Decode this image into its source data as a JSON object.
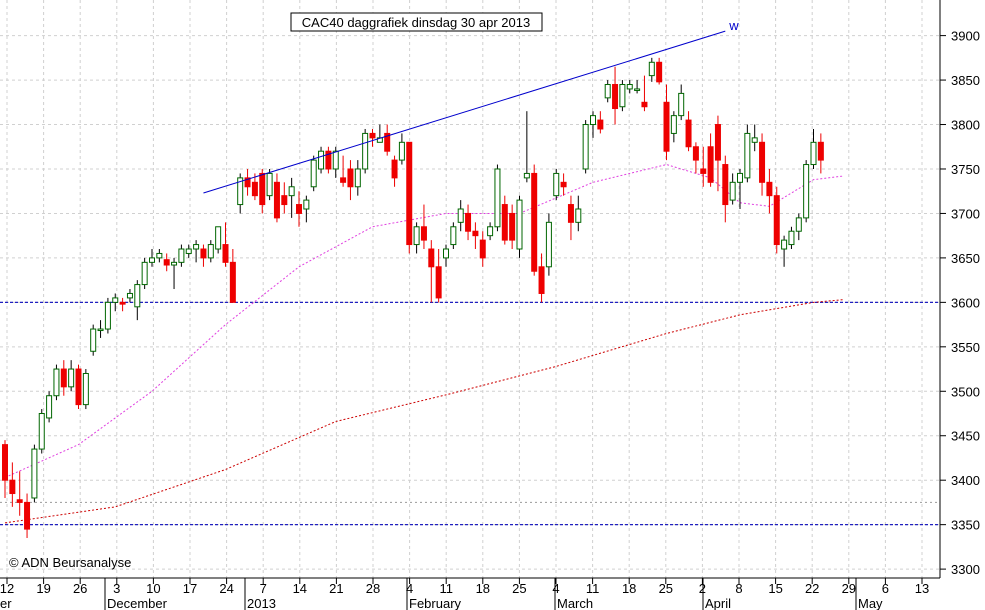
{
  "chart_data": {
    "type": "candlestick",
    "title": "CAC40 daggrafiek dinsdag 30 apr 2013",
    "copyright": "© ADN Beursanalyse",
    "trendline_label": "w",
    "ylim": [
      3290,
      3930
    ],
    "y_ticks": [
      3300,
      3350,
      3400,
      3450,
      3500,
      3550,
      3600,
      3650,
      3700,
      3750,
      3800,
      3850,
      3900
    ],
    "x_day_labels": [
      "12",
      "19",
      "26",
      "3",
      "10",
      "17",
      "24",
      "7",
      "14",
      "21",
      "28",
      "4",
      "11",
      "18",
      "25",
      "4",
      "11",
      "18",
      "25",
      "2",
      "8",
      "15",
      "22",
      "29",
      "6",
      "13"
    ],
    "x_month_labels": [
      "er",
      "December",
      "2013",
      "February",
      "March",
      "April",
      "May"
    ],
    "horizontal_levels": [
      3600,
      3350
    ],
    "dotted_level": 3375,
    "trendline": {
      "from": {
        "index": 27,
        "value": 3723
      },
      "to": {
        "index": 98,
        "value": 3905
      }
    },
    "series": [
      {
        "name": "Koers",
        "type": "candlestick",
        "candles": [
          [
            3440,
            3445,
            3380,
            3400
          ],
          [
            3400,
            3420,
            3370,
            3385
          ],
          [
            3378,
            3410,
            3360,
            3375
          ],
          [
            3375,
            3385,
            3335,
            3345
          ],
          [
            3380,
            3440,
            3375,
            3435
          ],
          [
            3435,
            3480,
            3430,
            3475
          ],
          [
            3470,
            3500,
            3465,
            3495
          ],
          [
            3495,
            3530,
            3490,
            3525
          ],
          [
            3525,
            3535,
            3495,
            3505
          ],
          [
            3505,
            3535,
            3500,
            3525
          ],
          [
            3525,
            3530,
            3480,
            3485
          ],
          [
            3485,
            3525,
            3480,
            3520
          ],
          [
            3545,
            3575,
            3540,
            3570
          ],
          [
            3570,
            3580,
            3560,
            3570
          ],
          [
            3570,
            3605,
            3565,
            3600
          ],
          [
            3600,
            3610,
            3590,
            3605
          ],
          [
            3600,
            3605,
            3590,
            3598
          ],
          [
            3605,
            3615,
            3600,
            3610
          ],
          [
            3595,
            3625,
            3580,
            3620
          ],
          [
            3620,
            3650,
            3615,
            3645
          ],
          [
            3645,
            3660,
            3640,
            3650
          ],
          [
            3650,
            3660,
            3645,
            3655
          ],
          [
            3648,
            3655,
            3635,
            3642
          ],
          [
            3642,
            3650,
            3615,
            3645
          ],
          [
            3645,
            3665,
            3640,
            3660
          ],
          [
            3655,
            3665,
            3650,
            3660
          ],
          [
            3660,
            3670,
            3645,
            3665
          ],
          [
            3660,
            3665,
            3640,
            3650
          ],
          [
            3650,
            3670,
            3645,
            3665
          ],
          [
            3660,
            3680,
            3655,
            3685
          ],
          [
            3665,
            3690,
            3640,
            3645
          ],
          [
            3645,
            3660,
            3600,
            3600
          ],
          [
            3710,
            3745,
            3700,
            3740
          ],
          [
            3740,
            3750,
            3720,
            3730
          ],
          [
            3735,
            3745,
            3715,
            3720
          ],
          [
            3745,
            3750,
            3700,
            3710
          ],
          [
            3720,
            3750,
            3715,
            3745
          ],
          [
            3735,
            3745,
            3690,
            3695
          ],
          [
            3720,
            3735,
            3700,
            3710
          ],
          [
            3720,
            3740,
            3695,
            3730
          ],
          [
            3710,
            3725,
            3685,
            3700
          ],
          [
            3705,
            3720,
            3690,
            3715
          ],
          [
            3730,
            3765,
            3725,
            3760
          ],
          [
            3750,
            3775,
            3745,
            3770
          ],
          [
            3770,
            3775,
            3745,
            3750
          ],
          [
            3750,
            3775,
            3740,
            3770
          ],
          [
            3740,
            3765,
            3730,
            3735
          ],
          [
            3750,
            3760,
            3715,
            3730
          ],
          [
            3730,
            3760,
            3720,
            3750
          ],
          [
            3750,
            3795,
            3745,
            3790
          ],
          [
            3790,
            3795,
            3775,
            3785
          ],
          [
            3780,
            3800,
            3780,
            3785
          ],
          [
            3790,
            3800,
            3765,
            3770
          ],
          [
            3760,
            3765,
            3730,
            3740
          ],
          [
            3760,
            3790,
            3755,
            3780
          ],
          [
            3780,
            3780,
            3655,
            3665
          ],
          [
            3665,
            3690,
            3655,
            3685
          ],
          [
            3685,
            3710,
            3660,
            3670
          ],
          [
            3660,
            3670,
            3600,
            3640
          ],
          [
            3640,
            3660,
            3600,
            3605
          ],
          [
            3650,
            3665,
            3640,
            3660
          ],
          [
            3665,
            3690,
            3660,
            3685
          ],
          [
            3690,
            3715,
            3680,
            3705
          ],
          [
            3700,
            3710,
            3670,
            3680
          ],
          [
            3680,
            3690,
            3660,
            3675
          ],
          [
            3670,
            3680,
            3640,
            3650
          ],
          [
            3675,
            3690,
            3670,
            3685
          ],
          [
            3685,
            3755,
            3680,
            3750
          ],
          [
            3710,
            3720,
            3665,
            3670
          ],
          [
            3700,
            3710,
            3660,
            3670
          ],
          [
            3660,
            3720,
            3650,
            3715
          ],
          [
            3740,
            3815,
            3735,
            3745
          ],
          [
            3745,
            3755,
            3630,
            3635
          ],
          [
            3640,
            3655,
            3600,
            3610
          ],
          [
            3640,
            3700,
            3630,
            3690
          ],
          [
            3720,
            3750,
            3715,
            3745
          ],
          [
            3735,
            3745,
            3720,
            3730
          ],
          [
            3710,
            3720,
            3670,
            3690
          ],
          [
            3690,
            3720,
            3680,
            3705
          ],
          [
            3750,
            3805,
            3745,
            3800
          ],
          [
            3800,
            3815,
            3785,
            3810
          ],
          [
            3805,
            3815,
            3790,
            3795
          ],
          [
            3830,
            3850,
            3825,
            3845
          ],
          [
            3845,
            3865,
            3800,
            3818
          ],
          [
            3820,
            3850,
            3815,
            3845
          ],
          [
            3840,
            3850,
            3835,
            3845
          ],
          [
            3840,
            3850,
            3835,
            3840
          ],
          [
            3825,
            3855,
            3815,
            3820
          ],
          [
            3855,
            3875,
            3848,
            3870
          ],
          [
            3870,
            3875,
            3845,
            3848
          ],
          [
            3825,
            3845,
            3760,
            3770
          ],
          [
            3790,
            3815,
            3780,
            3810
          ],
          [
            3810,
            3845,
            3805,
            3835
          ],
          [
            3805,
            3815,
            3770,
            3775
          ],
          [
            3775,
            3780,
            3745,
            3760
          ],
          [
            3750,
            3775,
            3730,
            3745
          ],
          [
            3775,
            3790,
            3730,
            3735
          ],
          [
            3800,
            3810,
            3725,
            3760
          ],
          [
            3755,
            3765,
            3690,
            3710
          ],
          [
            3715,
            3745,
            3710,
            3735
          ],
          [
            3735,
            3750,
            3705,
            3745
          ],
          [
            3740,
            3800,
            3735,
            3790
          ],
          [
            3780,
            3800,
            3770,
            3785
          ],
          [
            3780,
            3790,
            3720,
            3735
          ],
          [
            3735,
            3750,
            3700,
            3720
          ],
          [
            3720,
            3730,
            3655,
            3665
          ],
          [
            3660,
            3675,
            3640,
            3670
          ],
          [
            3665,
            3685,
            3660,
            3680
          ],
          [
            3680,
            3700,
            3670,
            3695
          ],
          [
            3695,
            3760,
            3690,
            3755
          ],
          [
            3755,
            3795,
            3750,
            3780
          ],
          [
            3780,
            3790,
            3745,
            3760
          ]
        ]
      },
      {
        "name": "MA20",
        "type": "line",
        "color": "#e040e0",
        "values": [
          [
            0,
            3403
          ],
          [
            10,
            3440
          ],
          [
            20,
            3500
          ],
          [
            30,
            3575
          ],
          [
            40,
            3640
          ],
          [
            50,
            3685
          ],
          [
            60,
            3700
          ],
          [
            70,
            3700
          ],
          [
            80,
            3735
          ],
          [
            90,
            3755
          ],
          [
            96,
            3740
          ],
          [
            100,
            3712
          ],
          [
            104,
            3708
          ],
          [
            110,
            3738
          ],
          [
            114,
            3742
          ]
        ]
      },
      {
        "name": "MA50",
        "type": "line",
        "color": "#cc0000",
        "values": [
          [
            0,
            3352
          ],
          [
            15,
            3370
          ],
          [
            30,
            3412
          ],
          [
            45,
            3466
          ],
          [
            60,
            3496
          ],
          [
            75,
            3528
          ],
          [
            90,
            3565
          ],
          [
            100,
            3586
          ],
          [
            110,
            3600
          ],
          [
            114,
            3603
          ]
        ]
      }
    ]
  }
}
